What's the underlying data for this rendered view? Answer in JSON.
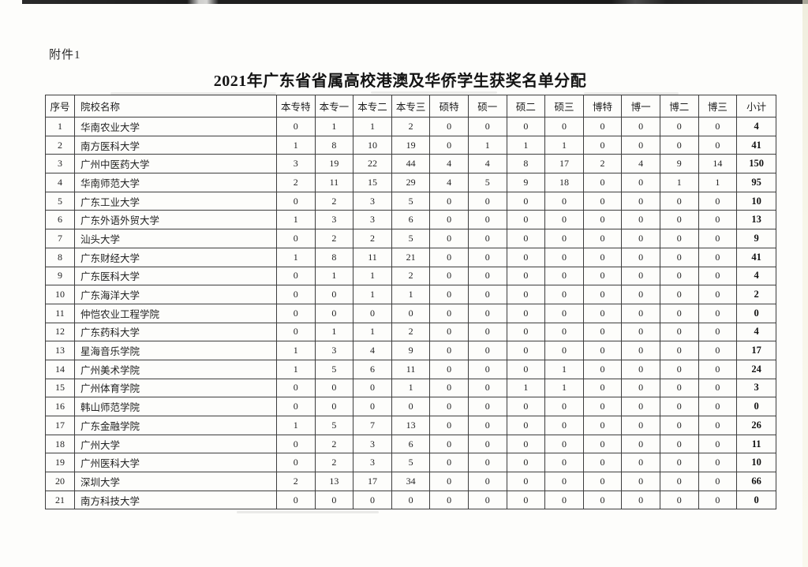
{
  "page": {
    "attachment_label": "附件1",
    "title": "2021年广东省省属高校港澳及华侨学生获奖名单分配"
  },
  "table": {
    "columns": [
      "序号",
      "院校名称",
      "本专特",
      "本专一",
      "本专二",
      "本专三",
      "硕特",
      "硕一",
      "硕二",
      "硕三",
      "博特",
      "博一",
      "博二",
      "博三",
      "小计"
    ],
    "rows": [
      [
        1,
        "华南农业大学",
        0,
        1,
        1,
        2,
        0,
        0,
        0,
        0,
        0,
        0,
        0,
        0,
        4
      ],
      [
        2,
        "南方医科大学",
        1,
        8,
        10,
        19,
        0,
        1,
        1,
        1,
        0,
        0,
        0,
        0,
        41
      ],
      [
        3,
        "广州中医药大学",
        3,
        19,
        22,
        44,
        4,
        4,
        8,
        17,
        2,
        4,
        9,
        14,
        150
      ],
      [
        4,
        "华南师范大学",
        2,
        11,
        15,
        29,
        4,
        5,
        9,
        18,
        0,
        0,
        1,
        1,
        95
      ],
      [
        5,
        "广东工业大学",
        0,
        2,
        3,
        5,
        0,
        0,
        0,
        0,
        0,
        0,
        0,
        0,
        10
      ],
      [
        6,
        "广东外语外贸大学",
        1,
        3,
        3,
        6,
        0,
        0,
        0,
        0,
        0,
        0,
        0,
        0,
        13
      ],
      [
        7,
        "汕头大学",
        0,
        2,
        2,
        5,
        0,
        0,
        0,
        0,
        0,
        0,
        0,
        0,
        9
      ],
      [
        8,
        "广东财经大学",
        1,
        8,
        11,
        21,
        0,
        0,
        0,
        0,
        0,
        0,
        0,
        0,
        41
      ],
      [
        9,
        "广东医科大学",
        0,
        1,
        1,
        2,
        0,
        0,
        0,
        0,
        0,
        0,
        0,
        0,
        4
      ],
      [
        10,
        "广东海洋大学",
        0,
        0,
        1,
        1,
        0,
        0,
        0,
        0,
        0,
        0,
        0,
        0,
        2
      ],
      [
        11,
        "仲恺农业工程学院",
        0,
        0,
        0,
        0,
        0,
        0,
        0,
        0,
        0,
        0,
        0,
        0,
        0
      ],
      [
        12,
        "广东药科大学",
        0,
        1,
        1,
        2,
        0,
        0,
        0,
        0,
        0,
        0,
        0,
        0,
        4
      ],
      [
        13,
        "星海音乐学院",
        1,
        3,
        4,
        9,
        0,
        0,
        0,
        0,
        0,
        0,
        0,
        0,
        17
      ],
      [
        14,
        "广州美术学院",
        1,
        5,
        6,
        11,
        0,
        0,
        0,
        1,
        0,
        0,
        0,
        0,
        24
      ],
      [
        15,
        "广州体育学院",
        0,
        0,
        0,
        1,
        0,
        0,
        1,
        1,
        0,
        0,
        0,
        0,
        3
      ],
      [
        16,
        "韩山师范学院",
        0,
        0,
        0,
        0,
        0,
        0,
        0,
        0,
        0,
        0,
        0,
        0,
        0
      ],
      [
        17,
        "广东金融学院",
        1,
        5,
        7,
        13,
        0,
        0,
        0,
        0,
        0,
        0,
        0,
        0,
        26
      ],
      [
        18,
        "广州大学",
        0,
        2,
        3,
        6,
        0,
        0,
        0,
        0,
        0,
        0,
        0,
        0,
        11
      ],
      [
        19,
        "广州医科大学",
        0,
        2,
        3,
        5,
        0,
        0,
        0,
        0,
        0,
        0,
        0,
        0,
        10
      ],
      [
        20,
        "深圳大学",
        2,
        13,
        17,
        34,
        0,
        0,
        0,
        0,
        0,
        0,
        0,
        0,
        66
      ],
      [
        21,
        "南方科技大学",
        0,
        0,
        0,
        0,
        0,
        0,
        0,
        0,
        0,
        0,
        0,
        0,
        0
      ]
    ]
  }
}
